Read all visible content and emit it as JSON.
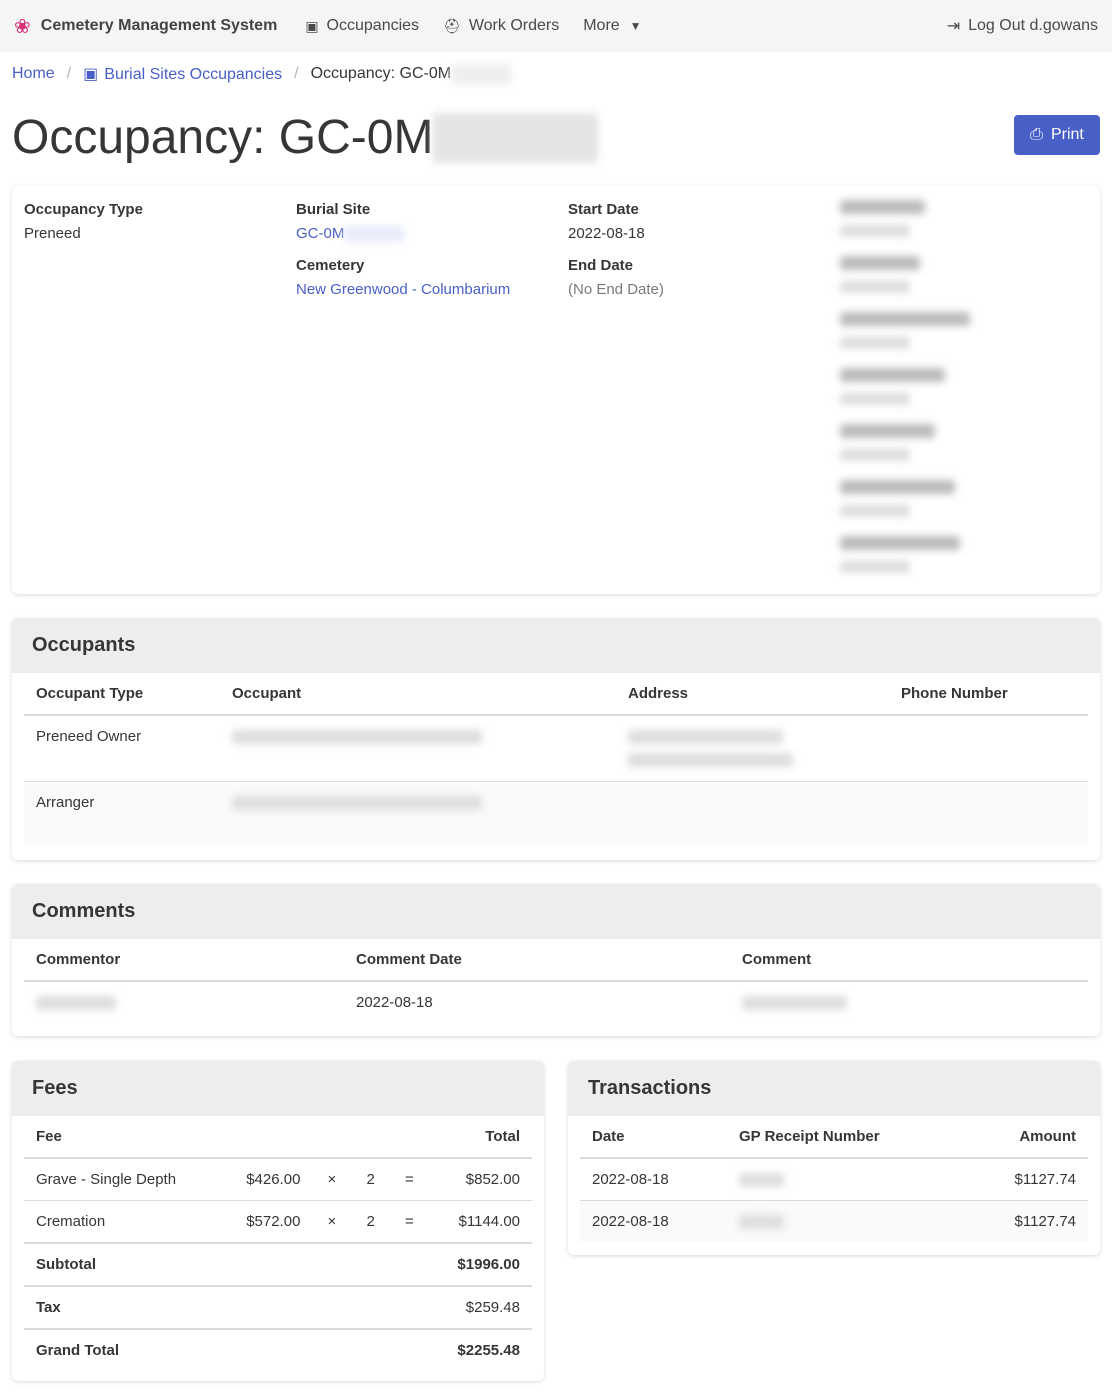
{
  "nav": {
    "brand": "Cemetery Management System",
    "occupancies": "Occupancies",
    "work_orders": "Work Orders",
    "more": "More",
    "logout": "Log Out d.gowans"
  },
  "breadcrumb": {
    "home": "Home",
    "sites": "Burial Sites Occupancies",
    "current": "Occupancy: GC-0M"
  },
  "title": "Occupancy: GC-0M",
  "print": "Print",
  "info": {
    "type_label": "Occupancy Type",
    "type": "Preneed",
    "site_label": "Burial Site",
    "site": "GC-0M",
    "cemetery_label": "Cemetery",
    "cemetery": "New Greenwood - Columbarium",
    "start_label": "Start Date",
    "start": "2022-08-18",
    "end_label": "End Date",
    "end": "(No End Date)"
  },
  "occupants": {
    "title": "Occupants",
    "headers": [
      "Occupant Type",
      "Occupant",
      "Address",
      "Phone Number"
    ],
    "rows": [
      {
        "type": "Preneed Owner"
      },
      {
        "type": "Arranger"
      }
    ]
  },
  "comments": {
    "title": "Comments",
    "headers": [
      "Commentor",
      "Comment Date",
      "Comment"
    ],
    "rows": [
      {
        "date": "2022-08-18"
      }
    ]
  },
  "fees": {
    "title": "Fees",
    "headers": [
      "Fee",
      "Total"
    ],
    "rows": [
      {
        "fee": "Grave - Single Depth",
        "unit": "$426.00",
        "x": "×",
        "qty": "2",
        "eq": "=",
        "total": "$852.00"
      },
      {
        "fee": "Cremation",
        "unit": "$572.00",
        "x": "×",
        "qty": "2",
        "eq": "=",
        "total": "$1144.00"
      }
    ],
    "subtotal_label": "Subtotal",
    "subtotal": "$1996.00",
    "tax_label": "Tax",
    "tax": "$259.48",
    "grand_label": "Grand Total",
    "grand": "$2255.48"
  },
  "transactions": {
    "title": "Transactions",
    "headers": [
      "Date",
      "GP Receipt Number",
      "Amount"
    ],
    "rows": [
      {
        "date": "2022-08-18",
        "amount": "$1127.74"
      },
      {
        "date": "2022-08-18",
        "amount": "$1127.74"
      }
    ]
  }
}
